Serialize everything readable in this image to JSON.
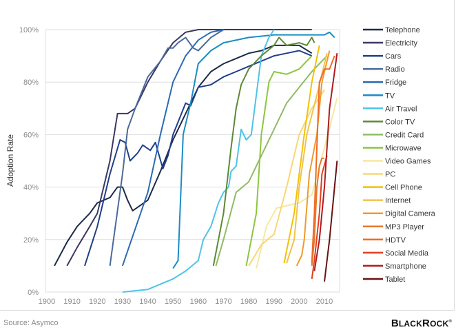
{
  "chart_data": {
    "type": "line",
    "title": "",
    "xlabel": "",
    "ylabel": "Adoption Rate",
    "xlim": [
      1900,
      2017
    ],
    "ylim": [
      0,
      100
    ],
    "x_ticks": [
      "1900",
      "1910",
      "1920",
      "1930",
      "1940",
      "1950",
      "1960",
      "1970",
      "1980",
      "1990",
      "2000",
      "2010"
    ],
    "y_ticks": [
      "0%",
      "20%",
      "40%",
      "60%",
      "80%",
      "100%"
    ],
    "grid": "horizontal",
    "legend_position": "right",
    "series": [
      {
        "name": "Telephone",
        "color": "#1b2b48",
        "points": [
          [
            1903,
            10
          ],
          [
            1908,
            19
          ],
          [
            1912,
            25
          ],
          [
            1917,
            30
          ],
          [
            1920,
            34
          ],
          [
            1925,
            36
          ],
          [
            1928,
            40
          ],
          [
            1930,
            40
          ],
          [
            1932,
            35
          ],
          [
            1934,
            31
          ],
          [
            1937,
            33
          ],
          [
            1940,
            35
          ],
          [
            1945,
            46
          ],
          [
            1950,
            58
          ],
          [
            1955,
            68
          ],
          [
            1960,
            78
          ],
          [
            1965,
            84
          ],
          [
            1970,
            87
          ],
          [
            1975,
            89
          ],
          [
            1980,
            91
          ],
          [
            1985,
            92
          ],
          [
            1990,
            94
          ],
          [
            1995,
            94
          ],
          [
            2000,
            94
          ],
          [
            2005,
            91
          ]
        ]
      },
      {
        "name": "Electricity",
        "color": "#3b3763",
        "points": [
          [
            1908,
            10
          ],
          [
            1912,
            17
          ],
          [
            1917,
            25
          ],
          [
            1920,
            30
          ],
          [
            1925,
            50
          ],
          [
            1928,
            68
          ],
          [
            1932,
            68
          ],
          [
            1935,
            70
          ],
          [
            1940,
            80
          ],
          [
            1945,
            88
          ],
          [
            1950,
            95
          ],
          [
            1955,
            99
          ],
          [
            1960,
            100
          ],
          [
            1980,
            100
          ],
          [
            2005,
            100
          ]
        ]
      },
      {
        "name": "Cars",
        "color": "#1f3f8a",
        "points": [
          [
            1915,
            10
          ],
          [
            1920,
            25
          ],
          [
            1925,
            45
          ],
          [
            1929,
            58
          ],
          [
            1931,
            57
          ],
          [
            1933,
            50
          ],
          [
            1936,
            53
          ],
          [
            1938,
            56
          ],
          [
            1941,
            54
          ],
          [
            1943,
            57
          ],
          [
            1946,
            47
          ],
          [
            1948,
            52
          ],
          [
            1950,
            60
          ],
          [
            1955,
            72
          ],
          [
            1957,
            71
          ],
          [
            1960,
            78
          ],
          [
            1965,
            79
          ],
          [
            1970,
            82
          ],
          [
            1975,
            84
          ],
          [
            1980,
            86
          ],
          [
            1985,
            88
          ],
          [
            1990,
            90
          ],
          [
            1995,
            91
          ],
          [
            2000,
            92
          ],
          [
            2005,
            90
          ]
        ]
      },
      {
        "name": "Radio",
        "color": "#4a6a9c",
        "points": [
          [
            1925,
            10
          ],
          [
            1930,
            45
          ],
          [
            1932,
            62
          ],
          [
            1935,
            70
          ],
          [
            1940,
            82
          ],
          [
            1945,
            88
          ],
          [
            1948,
            93
          ],
          [
            1950,
            93
          ],
          [
            1952,
            95
          ],
          [
            1955,
            97
          ],
          [
            1958,
            93
          ],
          [
            1960,
            92
          ],
          [
            1965,
            97
          ],
          [
            1970,
            100
          ]
        ]
      },
      {
        "name": "Fridge",
        "color": "#2a6ab5",
        "points": [
          [
            1930,
            10
          ],
          [
            1935,
            24
          ],
          [
            1940,
            38
          ],
          [
            1945,
            60
          ],
          [
            1950,
            80
          ],
          [
            1955,
            90
          ],
          [
            1960,
            96
          ],
          [
            1965,
            99
          ],
          [
            1970,
            100
          ]
        ]
      },
      {
        "name": "TV",
        "color": "#1a8cc4",
        "points": [
          [
            1950,
            9
          ],
          [
            1952,
            12
          ],
          [
            1954,
            60
          ],
          [
            1957,
            72
          ],
          [
            1960,
            87
          ],
          [
            1965,
            92
          ],
          [
            1970,
            95
          ],
          [
            1980,
            97
          ],
          [
            1990,
            98
          ],
          [
            2000,
            98
          ],
          [
            2010,
            98
          ],
          [
            2012,
            99
          ],
          [
            2014,
            97
          ]
        ]
      },
      {
        "name": "Air Travel",
        "color": "#4dc3e8",
        "points": [
          [
            1930,
            0
          ],
          [
            1940,
            1
          ],
          [
            1950,
            5
          ],
          [
            1955,
            8
          ],
          [
            1960,
            12
          ],
          [
            1962,
            20
          ],
          [
            1965,
            25
          ],
          [
            1968,
            34
          ],
          [
            1970,
            38
          ],
          [
            1972,
            40
          ],
          [
            1973,
            46
          ],
          [
            1975,
            48
          ],
          [
            1977,
            62
          ],
          [
            1979,
            58
          ],
          [
            1981,
            60
          ],
          [
            1985,
            90
          ],
          [
            1988,
            97
          ],
          [
            1990,
            100
          ]
        ]
      },
      {
        "name": "Color TV",
        "color": "#5a8a35",
        "points": [
          [
            1966,
            10
          ],
          [
            1970,
            30
          ],
          [
            1973,
            55
          ],
          [
            1975,
            70
          ],
          [
            1977,
            79
          ],
          [
            1980,
            85
          ],
          [
            1985,
            90
          ],
          [
            1990,
            94
          ],
          [
            1992,
            97
          ],
          [
            1995,
            94
          ],
          [
            2000,
            95
          ],
          [
            2003,
            94
          ],
          [
            2005,
            97
          ],
          [
            2006,
            95
          ]
        ]
      },
      {
        "name": "Credit Card",
        "color": "#8fbc63",
        "points": [
          [
            1967,
            10
          ],
          [
            1970,
            20
          ],
          [
            1975,
            38
          ],
          [
            1980,
            42
          ],
          [
            1983,
            48
          ],
          [
            1990,
            62
          ],
          [
            1995,
            72
          ],
          [
            2000,
            78
          ],
          [
            2005,
            84
          ],
          [
            2011,
            90
          ]
        ]
      },
      {
        "name": "Microwave",
        "color": "#8cc63f",
        "points": [
          [
            1979,
            10
          ],
          [
            1983,
            30
          ],
          [
            1985,
            60
          ],
          [
            1988,
            80
          ],
          [
            1990,
            84
          ],
          [
            1995,
            83
          ],
          [
            2000,
            85
          ],
          [
            2005,
            90
          ]
        ]
      },
      {
        "name": "Video Games",
        "color": "#f7e7a0",
        "points": [
          [
            1983,
            9
          ],
          [
            1987,
            25
          ],
          [
            1991,
            32
          ],
          [
            2000,
            34
          ],
          [
            2005,
            37
          ],
          [
            2010,
            55
          ],
          [
            2015,
            74
          ]
        ]
      },
      {
        "name": "PC",
        "color": "#f8d774",
        "points": [
          [
            1980,
            10
          ],
          [
            1985,
            18
          ],
          [
            1990,
            22
          ],
          [
            1995,
            40
          ],
          [
            2000,
            60
          ],
          [
            2005,
            70
          ],
          [
            2010,
            77
          ]
        ]
      },
      {
        "name": "Cell Phone",
        "color": "#f2c200",
        "points": [
          [
            1994,
            11
          ],
          [
            1998,
            30
          ],
          [
            2002,
            60
          ],
          [
            2005,
            80
          ],
          [
            2008,
            94
          ]
        ]
      },
      {
        "name": "Internet",
        "color": "#f3c24a",
        "points": [
          [
            1995,
            11
          ],
          [
            1998,
            20
          ],
          [
            2000,
            40
          ],
          [
            2003,
            60
          ],
          [
            2007,
            75
          ],
          [
            2011,
            91
          ]
        ]
      },
      {
        "name": "Digital Camera",
        "color": "#ef9a2c",
        "points": [
          [
            1999,
            10
          ],
          [
            2001,
            14
          ],
          [
            2002,
            20
          ],
          [
            2004,
            45
          ],
          [
            2007,
            60
          ],
          [
            2009,
            80
          ],
          [
            2012,
            92
          ]
        ]
      },
      {
        "name": "MP3 Player",
        "color": "#e8772a",
        "points": [
          [
            2005,
            10
          ],
          [
            2006,
            20
          ],
          [
            2007,
            40
          ],
          [
            2008,
            48
          ],
          [
            2009,
            51
          ],
          [
            2010,
            51
          ]
        ]
      },
      {
        "name": "HDTV",
        "color": "#f06a22",
        "points": [
          [
            2005,
            11
          ],
          [
            2006,
            30
          ],
          [
            2007,
            55
          ],
          [
            2008,
            80
          ],
          [
            2010,
            85
          ],
          [
            2012,
            85
          ],
          [
            2014,
            90
          ]
        ]
      },
      {
        "name": "Social Media",
        "color": "#e0401f",
        "points": [
          [
            2005,
            5
          ],
          [
            2006,
            12
          ],
          [
            2008,
            30
          ],
          [
            2009,
            45
          ],
          [
            2011,
            52
          ]
        ]
      },
      {
        "name": "Smartphone",
        "color": "#b01a1e",
        "points": [
          [
            2006,
            8
          ],
          [
            2008,
            20
          ],
          [
            2010,
            40
          ],
          [
            2012,
            70
          ],
          [
            2015,
            91
          ]
        ]
      },
      {
        "name": "Tablet",
        "color": "#6a1114",
        "points": [
          [
            2010,
            4
          ],
          [
            2012,
            20
          ],
          [
            2014,
            40
          ],
          [
            2015,
            50
          ]
        ]
      }
    ]
  },
  "footer": {
    "source": "Source: Asymco",
    "logo": "BlackRock"
  }
}
